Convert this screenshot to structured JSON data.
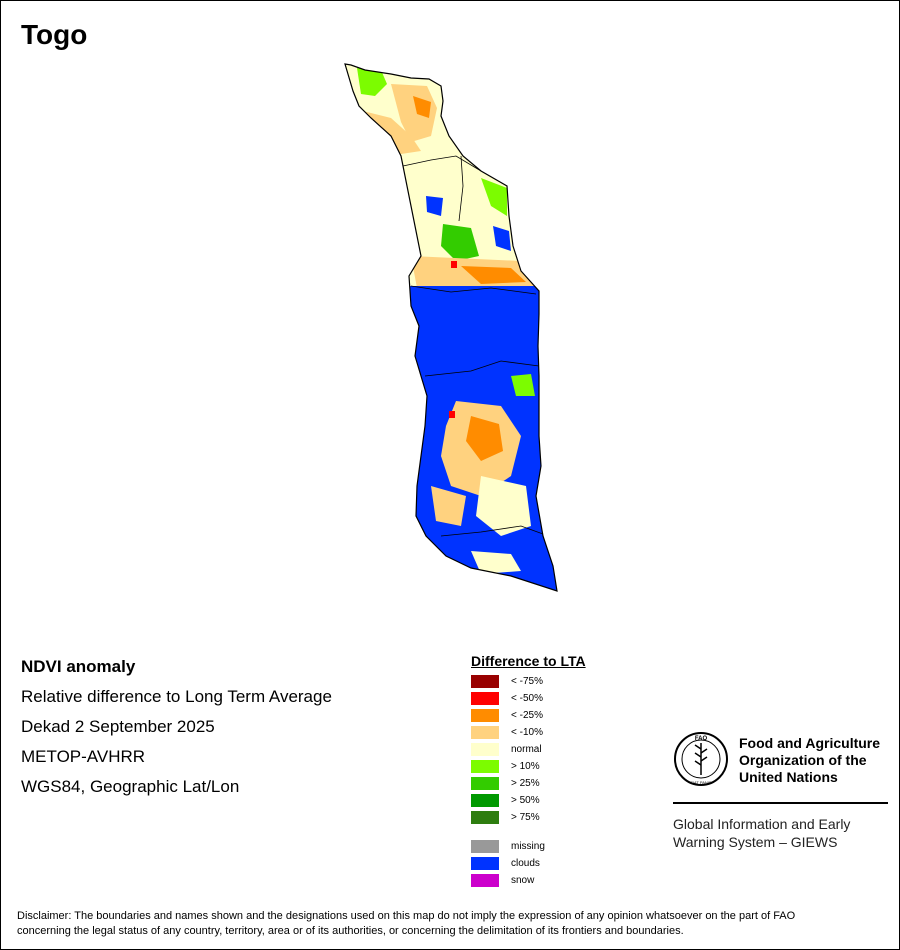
{
  "title": "Togo",
  "info": {
    "heading": "NDVI anomaly",
    "lines": [
      "Relative difference to Long Term Average",
      "Dekad 2 September 2025",
      "METOP-AVHRR",
      "WGS84, Geographic Lat/Lon"
    ]
  },
  "legend": {
    "title": "Difference to LTA",
    "items": [
      {
        "label": "< -75%",
        "color": "#990000"
      },
      {
        "label": "< -50%",
        "color": "#ff0000"
      },
      {
        "label": "< -25%",
        "color": "#ff8c00"
      },
      {
        "label": "< -10%",
        "color": "#ffd27f"
      },
      {
        "label": "normal",
        "color": "#ffffcc"
      },
      {
        "label": "> 10%",
        "color": "#7cfc00"
      },
      {
        "label": "> 25%",
        "color": "#33cc00"
      },
      {
        "label": "> 50%",
        "color": "#009900"
      },
      {
        "label": "> 75%",
        "color": "#2e7d0f"
      }
    ],
    "extra": [
      {
        "label": "missing",
        "color": "#999999"
      },
      {
        "label": "clouds",
        "color": "#0033ff"
      },
      {
        "label": "snow",
        "color": "#cc00cc"
      }
    ]
  },
  "fao": {
    "emblem_letters": "FAO",
    "emblem_motto": "FIAT PANIS",
    "org_line1": "Food and Agriculture",
    "org_line2": "Organization of the",
    "org_line3": "United Nations",
    "giews_line1": "Global Information and Early",
    "giews_line2": "Warning System – GIEWS"
  },
  "disclaimer": {
    "line1": "Disclaimer: The boundaries and names shown and the designations used on this map do not imply the expression of any opinion whatsoever on the part of FAO",
    "line2": "concerning the legal status of any country, territory, area or of its authorities, or concerning the delimitation of its frontiers and boundaries."
  },
  "map_colors": {
    "normal": "#ffffcc",
    "clouds": "#0033ff",
    "negative10": "#ffd27f",
    "negative25": "#ff8c00",
    "negative50": "#ff0000",
    "positive10": "#7cfc00",
    "positive25": "#33cc00",
    "border": "#000000"
  }
}
